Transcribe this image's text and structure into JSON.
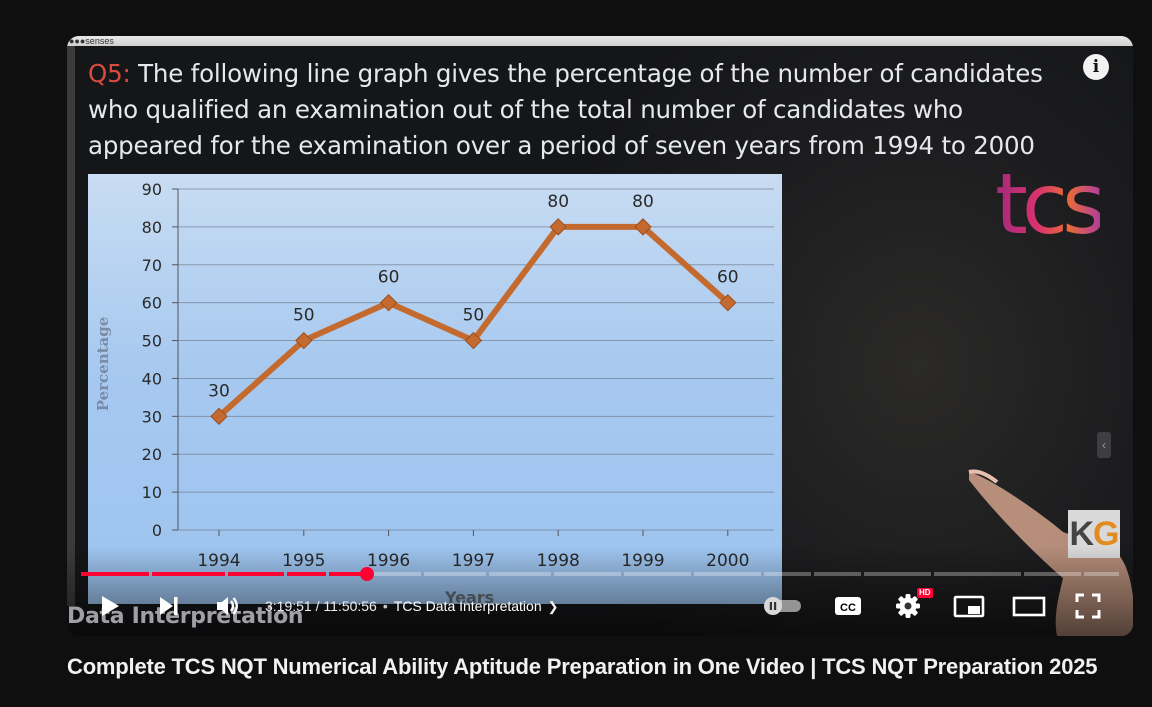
{
  "player": {
    "top_strip_text": "●●●senses",
    "question": {
      "number": "Q5:",
      "text": " The following line graph gives the percentage of the number of candidates who qualified an examination out of the total number of candidates who appeared for the examination over a period of seven years from 1994 to 2000"
    },
    "info_icon": "info-icon",
    "tcs_logo": "tcs",
    "kg_logo": {
      "k": "K",
      "g": "G"
    },
    "watermark": "Data Interpretation",
    "x_axis_title_partial": "Years",
    "y_axis_title_partial": "Percentage",
    "controls": {
      "current_time": "3:19:51",
      "separator": " / ",
      "duration": "11:50:56",
      "bullet": "•",
      "chapter": "TCS Data Interpretation",
      "chapter_chevron": "❯",
      "hd_badge": "HD",
      "cc_label": "CC",
      "progress_fraction": 0.276
    },
    "colors": {
      "accent": "#ff0033",
      "line": "#c46a2e",
      "chart_bg": "#a7c9f0"
    }
  },
  "video_title": "Complete TCS NQT Numerical Ability Aptitude Preparation in One Video | TCS NQT Preparation 2025",
  "chart_data": {
    "type": "line",
    "title": "",
    "xlabel": "Years",
    "ylabel": "Percentage",
    "x": [
      "1994",
      "1995",
      "1996",
      "1997",
      "1998",
      "1999",
      "2000"
    ],
    "series": [
      {
        "values": [
          30,
          50,
          60,
          50,
          80,
          80,
          60
        ]
      }
    ],
    "y_ticks": [
      "0",
      "10",
      "20",
      "30",
      "40",
      "50",
      "60",
      "70",
      "80",
      "90"
    ],
    "ylim": [
      0,
      90
    ],
    "data_labels": [
      "30",
      "50",
      "60",
      "50",
      "80",
      "80",
      "60"
    ],
    "grid": true,
    "legend": "none"
  }
}
